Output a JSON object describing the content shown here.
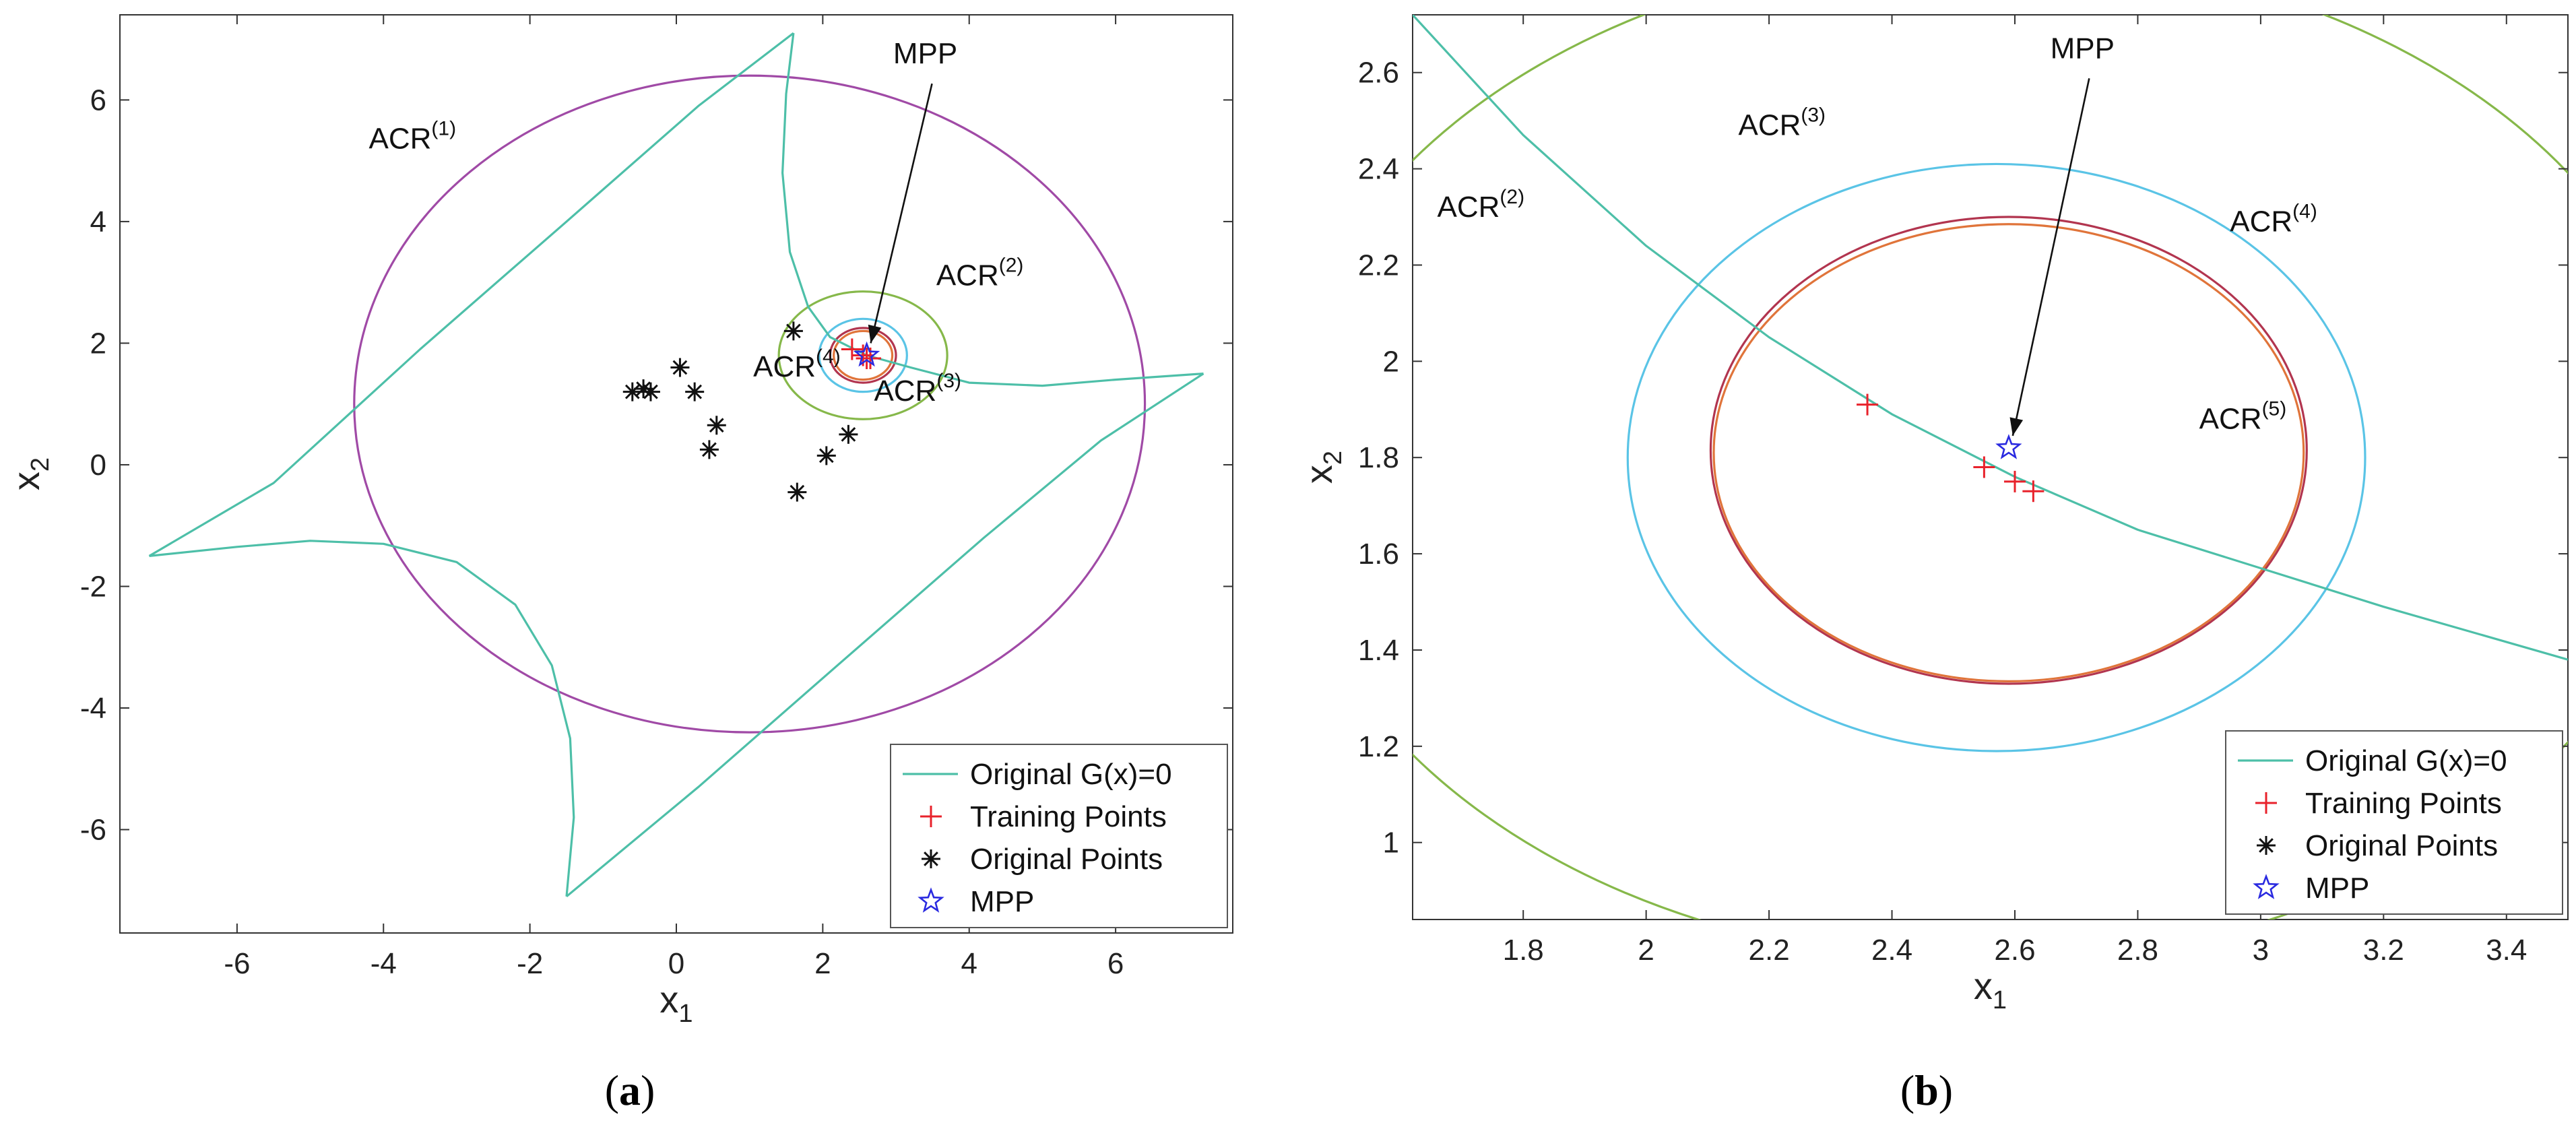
{
  "chart_data": [
    {
      "panel": "a",
      "type": "line",
      "xlabel": "x",
      "xlabel_sub": "1",
      "ylabel": "x",
      "ylabel_sub": "2",
      "xlim": [
        -7.6,
        7.6
      ],
      "ylim": [
        -7.7,
        7.4
      ],
      "xticks": [
        -6,
        -4,
        -2,
        0,
        2,
        4,
        6
      ],
      "yticks": [
        -6,
        -4,
        -2,
        0,
        2,
        4,
        6
      ],
      "limit_state": {
        "name": "Original G(x)=0",
        "color": "#4dbfa8",
        "branches": [
          [
            [
              1.6,
              7.1
            ],
            [
              0.3,
              5.9
            ],
            [
              -1.5,
              4.0
            ],
            [
              -3.5,
              1.9
            ],
            [
              -5.5,
              -0.3
            ],
            [
              -7.2,
              -1.5
            ]
          ],
          [
            [
              -7.2,
              -1.5
            ],
            [
              -6.0,
              -1.35
            ],
            [
              -5.0,
              -1.25
            ],
            [
              -4.0,
              -1.3
            ],
            [
              -3.0,
              -1.6
            ],
            [
              -2.2,
              -2.3
            ],
            [
              -1.7,
              -3.3
            ],
            [
              -1.45,
              -4.5
            ],
            [
              -1.4,
              -5.8
            ],
            [
              -1.5,
              -7.1
            ]
          ],
          [
            [
              -1.5,
              -7.1
            ],
            [
              0.3,
              -5.3
            ],
            [
              2.2,
              -3.3
            ],
            [
              4.2,
              -1.2
            ],
            [
              5.8,
              0.4
            ],
            [
              7.2,
              1.5
            ]
          ],
          [
            [
              7.2,
              1.5
            ],
            [
              6.0,
              1.4
            ],
            [
              5.0,
              1.3
            ],
            [
              4.0,
              1.35
            ],
            [
              3.2,
              1.6
            ],
            [
              2.6,
              1.8
            ],
            [
              2.1,
              2.1
            ],
            [
              1.8,
              2.6
            ],
            [
              1.55,
              3.5
            ],
            [
              1.45,
              4.8
            ],
            [
              1.5,
              6.1
            ],
            [
              1.6,
              7.1
            ]
          ]
        ]
      },
      "regions": [
        {
          "name": "ACR",
          "sup": "(1)",
          "center": [
            1.0,
            1.0
          ],
          "rx": 5.4,
          "ry": 5.4,
          "color": "#a04aa6"
        },
        {
          "name": "ACR",
          "sup": "(2)",
          "center": [
            2.55,
            1.8
          ],
          "rx": 1.15,
          "ry": 1.05,
          "color": "#86b84a"
        },
        {
          "name": "ACR",
          "sup": "(3)",
          "center": [
            2.55,
            1.8
          ],
          "rx": 0.6,
          "ry": 0.6,
          "color": "#5ac4e6"
        },
        {
          "name": "ACR",
          "sup": "(4)",
          "center": [
            2.55,
            1.8
          ],
          "rx": 0.45,
          "ry": 0.45,
          "color": "#b2354f"
        },
        {
          "name": "ACR",
          "sup": "(5)",
          "center": [
            2.55,
            1.8
          ],
          "rx": 0.4,
          "ry": 0.4,
          "color": "#e0743a"
        }
      ],
      "region_labels": [
        {
          "text": "ACR",
          "sup": "(1)",
          "x": -4.2,
          "y": 5.2
        },
        {
          "text": "ACR",
          "sup": "(2)",
          "x": 3.55,
          "y": 2.95
        },
        {
          "text": "ACR",
          "sup": "(4)",
          "x": 1.05,
          "y": 1.45
        },
        {
          "text": "ACR",
          "sup": "(3)",
          "x": 2.7,
          "y": 1.05
        }
      ],
      "training_points": [
        [
          2.4,
          1.9
        ],
        [
          2.6,
          1.75
        ],
        [
          2.65,
          1.75
        ],
        [
          2.55,
          1.8
        ]
      ],
      "original_points": [
        [
          -0.6,
          1.2
        ],
        [
          -0.45,
          1.25
        ],
        [
          -0.35,
          1.2
        ],
        [
          0.05,
          1.6
        ],
        [
          0.25,
          1.2
        ],
        [
          0.55,
          0.65
        ],
        [
          0.45,
          0.25
        ],
        [
          1.6,
          2.2
        ],
        [
          1.65,
          -0.45
        ],
        [
          2.05,
          0.15
        ],
        [
          2.35,
          0.5
        ]
      ],
      "mpp": [
        2.6,
        1.8
      ],
      "mpp_annotation": {
        "text": "MPP",
        "x": 3.4,
        "y": 6.6
      },
      "legend": [
        "Original G(x)=0",
        "Training Points",
        "Original Points",
        "MPP"
      ],
      "legend_loc": "bottom-right"
    },
    {
      "panel": "b",
      "type": "line",
      "xlabel": "x",
      "xlabel_sub": "1",
      "ylabel": "x",
      "ylabel_sub": "2",
      "xlim": [
        1.62,
        3.5
      ],
      "ylim": [
        0.84,
        2.72
      ],
      "xticks": [
        1.8,
        2,
        2.2,
        2.4,
        2.6,
        2.8,
        3,
        3.2,
        3.4
      ],
      "yticks": [
        1,
        1.2,
        1.4,
        1.6,
        1.8,
        2,
        2.2,
        2.4,
        2.6
      ],
      "limit_state": {
        "name": "Original G(x)=0",
        "color": "#4dbfa8",
        "branches": [
          [
            [
              1.62,
              2.72
            ],
            [
              1.8,
              2.47
            ],
            [
              2.0,
              2.24
            ],
            [
              2.2,
              2.05
            ],
            [
              2.4,
              1.89
            ],
            [
              2.6,
              1.76
            ],
            [
              2.8,
              1.65
            ],
            [
              3.0,
              1.57
            ],
            [
              3.2,
              1.49
            ],
            [
              3.5,
              1.38
            ]
          ]
        ]
      },
      "regions": [
        {
          "name": "ACR",
          "sup": "(2)",
          "center": [
            2.55,
            1.8
          ],
          "rx": 1.15,
          "ry": 1.05,
          "color": "#86b84a"
        },
        {
          "name": "ACR",
          "sup": "(3)",
          "center": [
            2.57,
            1.8
          ],
          "rx": 0.6,
          "ry": 0.61,
          "color": "#5ac4e6"
        },
        {
          "name": "ACR",
          "sup": "(4)",
          "center": [
            2.59,
            1.815
          ],
          "rx": 0.485,
          "ry": 0.485,
          "color": "#b2354f"
        },
        {
          "name": "ACR",
          "sup": "(5)",
          "center": [
            2.59,
            1.81
          ],
          "rx": 0.48,
          "ry": 0.475,
          "color": "#e0743a"
        }
      ],
      "region_labels": [
        {
          "text": "ACR",
          "sup": "(2)",
          "x": 1.66,
          "y": 2.3
        },
        {
          "text": "ACR",
          "sup": "(3)",
          "x": 2.15,
          "y": 2.47
        },
        {
          "text": "ACR",
          "sup": "(4)",
          "x": 2.95,
          "y": 2.27
        },
        {
          "text": "ACR",
          "sup": "(5)",
          "x": 2.9,
          "y": 1.86
        }
      ],
      "training_points": [
        [
          2.36,
          1.91
        ],
        [
          2.55,
          1.78
        ],
        [
          2.6,
          1.75
        ],
        [
          2.63,
          1.73
        ]
      ],
      "original_points": [],
      "mpp": [
        2.59,
        1.82
      ],
      "mpp_annotation": {
        "text": "MPP",
        "x": 2.71,
        "y": 2.63
      },
      "legend": [
        "Original G(x)=0",
        "Training Points",
        "Original Points",
        "MPP"
      ],
      "legend_loc": "bottom-right"
    }
  ],
  "panel_labels": {
    "a": "a",
    "b": "b"
  },
  "colors": {
    "limit_state": "#4dbfa8",
    "training": "#e8222b",
    "original": "#111111",
    "mpp": "#2a2ae0",
    "axis": "#333333"
  }
}
